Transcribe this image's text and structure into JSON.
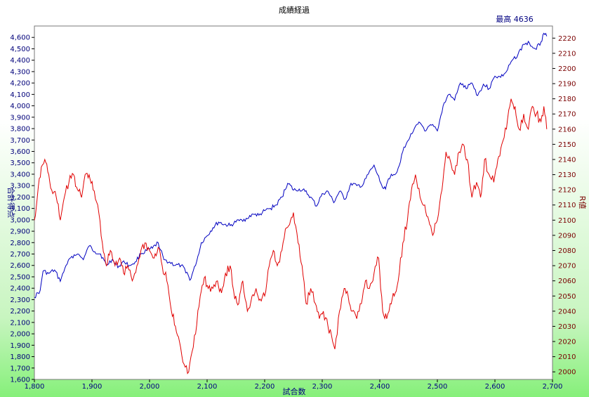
{
  "chart_data": {
    "type": "line",
    "title": "成績経過",
    "xlabel": "試合数",
    "ylabel_left": "合計得点",
    "ylabel_right": "R値",
    "annotation": "最高 4636",
    "xlim": [
      1800,
      2700
    ],
    "ylim_left": [
      1600,
      4700
    ],
    "ylim_right": [
      1995,
      2228
    ],
    "x_ticks": [
      "1,800",
      "1,900",
      "2,000",
      "2,100",
      "2,200",
      "2,300",
      "2,400",
      "2,500",
      "2,600",
      "2,700"
    ],
    "x_tick_values": [
      1800,
      1900,
      2000,
      2100,
      2200,
      2300,
      2400,
      2500,
      2600,
      2700
    ],
    "y_left_ticks": [
      "1,600",
      "1,700",
      "1,800",
      "1,900",
      "2,000",
      "2,100",
      "2,200",
      "2,300",
      "2,400",
      "2,500",
      "2,600",
      "2,700",
      "2,800",
      "2,900",
      "3,000",
      "3,100",
      "3,200",
      "3,300",
      "3,400",
      "3,500",
      "3,600",
      "3,700",
      "3,800",
      "3,900",
      "4,000",
      "4,100",
      "4,200",
      "4,300",
      "4,400",
      "4,500",
      "4,600"
    ],
    "y_left_tick_values": [
      1600,
      1700,
      1800,
      1900,
      2000,
      2100,
      2200,
      2300,
      2400,
      2500,
      2600,
      2700,
      2800,
      2900,
      3000,
      3100,
      3200,
      3300,
      3400,
      3500,
      3600,
      3700,
      3800,
      3900,
      4000,
      4100,
      4200,
      4300,
      4400,
      4500,
      4600
    ],
    "y_right_ticks": [
      "2000",
      "2010",
      "2020",
      "2030",
      "2040",
      "2050",
      "2060",
      "2070",
      "2080",
      "2090",
      "2100",
      "2110",
      "2120",
      "2130",
      "2140",
      "2150",
      "2160",
      "2170",
      "2180",
      "2190",
      "2200",
      "2210",
      "2220"
    ],
    "y_right_tick_values": [
      2000,
      2010,
      2020,
      2030,
      2040,
      2050,
      2060,
      2070,
      2080,
      2090,
      2100,
      2110,
      2120,
      2130,
      2140,
      2150,
      2160,
      2170,
      2180,
      2190,
      2200,
      2210,
      2220
    ],
    "series": [
      {
        "color": "#0000c0",
        "axis": "left",
        "x": [
          1800,
          1810,
          1815,
          1825,
          1835,
          1845,
          1855,
          1865,
          1875,
          1885,
          1895,
          1905,
          1915,
          1925,
          1935,
          1945,
          1955,
          1965,
          1975,
          1985,
          1995,
          2005,
          2015,
          2025,
          2035,
          2045,
          2055,
          2065,
          2070,
          2080,
          2090,
          2100,
          2110,
          2120,
          2130,
          2140,
          2150,
          2160,
          2170,
          2180,
          2190,
          2200,
          2210,
          2220,
          2230,
          2240,
          2245,
          2250,
          2260,
          2270,
          2280,
          2290,
          2300,
          2310,
          2320,
          2330,
          2340,
          2350,
          2360,
          2370,
          2380,
          2390,
          2400,
          2405,
          2410,
          2415,
          2420,
          2430,
          2440,
          2450,
          2460,
          2470,
          2480,
          2490,
          2500,
          2510,
          2520,
          2530,
          2540,
          2550,
          2560,
          2570,
          2580,
          2590,
          2600,
          2610,
          2620,
          2630,
          2640,
          2650,
          2660,
          2670,
          2680,
          2685,
          2690
        ],
        "values": [
          2320,
          2380,
          2550,
          2530,
          2560,
          2460,
          2600,
          2680,
          2700,
          2650,
          2770,
          2720,
          2700,
          2600,
          2650,
          2580,
          2640,
          2600,
          2630,
          2700,
          2730,
          2750,
          2800,
          2650,
          2630,
          2600,
          2600,
          2540,
          2470,
          2600,
          2800,
          2860,
          2930,
          2980,
          2960,
          2950,
          2980,
          3000,
          3010,
          3050,
          3040,
          3080,
          3100,
          3130,
          3200,
          3320,
          3300,
          3260,
          3270,
          3250,
          3200,
          3120,
          3230,
          3250,
          3150,
          3250,
          3180,
          3320,
          3300,
          3300,
          3400,
          3480,
          3340,
          3280,
          3270,
          3360,
          3400,
          3420,
          3600,
          3700,
          3800,
          3850,
          3780,
          3830,
          3780,
          4000,
          4100,
          4050,
          4200,
          4150,
          4200,
          4090,
          4190,
          4150,
          4260,
          4250,
          4300,
          4400,
          4450,
          4540,
          4550,
          4500,
          4560,
          4636,
          4610
        ]
      },
      {
        "color": "#e00000",
        "axis": "right",
        "x": [
          1800,
          1805,
          1812,
          1818,
          1825,
          1830,
          1838,
          1845,
          1852,
          1860,
          1868,
          1875,
          1882,
          1888,
          1895,
          1902,
          1910,
          1918,
          1925,
          1932,
          1940,
          1948,
          1955,
          1962,
          1970,
          1978,
          1985,
          1992,
          2000,
          2008,
          2015,
          2022,
          2030,
          2038,
          2045,
          2052,
          2060,
          2068,
          2072,
          2080,
          2088,
          2095,
          2102,
          2110,
          2118,
          2125,
          2132,
          2140,
          2148,
          2155,
          2162,
          2170,
          2178,
          2185,
          2192,
          2200,
          2208,
          2215,
          2222,
          2230,
          2238,
          2245,
          2250,
          2258,
          2265,
          2272,
          2280,
          2288,
          2295,
          2302,
          2310,
          2318,
          2322,
          2330,
          2338,
          2345,
          2352,
          2360,
          2368,
          2375,
          2382,
          2390,
          2398,
          2405,
          2412,
          2418,
          2425,
          2432,
          2440,
          2448,
          2455,
          2462,
          2470,
          2478,
          2485,
          2492,
          2500,
          2508,
          2515,
          2522,
          2530,
          2538,
          2545,
          2552,
          2560,
          2568,
          2575,
          2582,
          2590,
          2598,
          2605,
          2612,
          2620,
          2628,
          2635,
          2642,
          2650,
          2658,
          2665,
          2672,
          2680,
          2685,
          2690
        ],
        "values": [
          2100,
          2115,
          2135,
          2140,
          2130,
          2120,
          2115,
          2100,
          2115,
          2125,
          2130,
          2120,
          2115,
          2130,
          2130,
          2120,
          2110,
          2085,
          2070,
          2080,
          2070,
          2075,
          2065,
          2070,
          2060,
          2070,
          2080,
          2085,
          2080,
          2075,
          2082,
          2070,
          2060,
          2040,
          2030,
          2020,
          2005,
          2000,
          2010,
          2025,
          2050,
          2062,
          2055,
          2055,
          2060,
          2052,
          2065,
          2070,
          2048,
          2045,
          2060,
          2040,
          2050,
          2055,
          2048,
          2050,
          2070,
          2080,
          2070,
          2080,
          2095,
          2100,
          2105,
          2085,
          2070,
          2045,
          2055,
          2045,
          2035,
          2040,
          2030,
          2020,
          2015,
          2040,
          2055,
          2050,
          2040,
          2035,
          2045,
          2060,
          2055,
          2065,
          2075,
          2040,
          2035,
          2045,
          2050,
          2060,
          2085,
          2100,
          2120,
          2130,
          2115,
          2110,
          2100,
          2090,
          2100,
          2120,
          2145,
          2140,
          2130,
          2145,
          2150,
          2140,
          2115,
          2125,
          2115,
          2140,
          2130,
          2125,
          2140,
          2150,
          2160,
          2180,
          2175,
          2160,
          2170,
          2160,
          2175,
          2170,
          2165,
          2175,
          2160
        ]
      }
    ],
    "grid": false,
    "legend": "none"
  }
}
